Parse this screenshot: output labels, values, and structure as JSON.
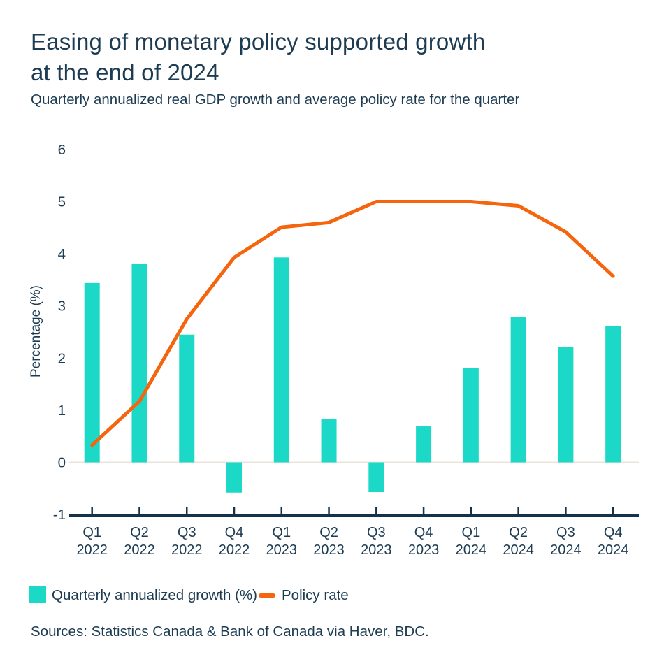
{
  "header": {
    "title": "Easing of monetary policy supported growth\nat the end of 2024",
    "subtitle": "Quarterly annualized real GDP growth and average policy rate for the quarter"
  },
  "chart_data": {
    "type": "bar+line",
    "categories": [
      {
        "quarter": "Q1",
        "year": "2022"
      },
      {
        "quarter": "Q2",
        "year": "2022"
      },
      {
        "quarter": "Q3",
        "year": "2022"
      },
      {
        "quarter": "Q4",
        "year": "2022"
      },
      {
        "quarter": "Q1",
        "year": "2023"
      },
      {
        "quarter": "Q2",
        "year": "2023"
      },
      {
        "quarter": "Q3",
        "year": "2023"
      },
      {
        "quarter": "Q4",
        "year": "2023"
      },
      {
        "quarter": "Q1",
        "year": "2024"
      },
      {
        "quarter": "Q2",
        "year": "2024"
      },
      {
        "quarter": "Q3",
        "year": "2024"
      },
      {
        "quarter": "Q4",
        "year": "2024"
      }
    ],
    "series": [
      {
        "name": "Quarterly annualized growth (%)",
        "type": "bar",
        "color": "#1CD9C7",
        "values": [
          3.44,
          3.81,
          2.45,
          -0.58,
          3.93,
          0.83,
          -0.57,
          0.69,
          1.81,
          2.79,
          2.21,
          2.61
        ]
      },
      {
        "name": "Policy rate",
        "type": "line",
        "color": "#F5650D",
        "values": [
          0.33,
          1.17,
          2.75,
          3.93,
          4.51,
          4.6,
          5.0,
          5.0,
          5.0,
          4.92,
          4.42,
          3.57
        ]
      }
    ],
    "ylabel": "Percentage (%)",
    "yticks": [
      6,
      5,
      4,
      3,
      2,
      1,
      0,
      -1
    ],
    "ylim": [
      -1,
      6
    ],
    "grid": "zero-line-only",
    "legend_position": "bottom-left"
  },
  "legend": {
    "items": [
      {
        "label": "Quarterly annualized growth (%)",
        "swatch": "bar-swatch"
      },
      {
        "label": "Policy rate",
        "swatch": "line-swatch"
      }
    ]
  },
  "source": "Sources: Statistics Canada & Bank of Canada via Haver, BDC.",
  "colors": {
    "bar": "#1CD9C7",
    "line": "#F5650D",
    "text": "#1D3C52",
    "axis_line": "#16324A",
    "zero_line": "#EAE4DC",
    "background": "#FFFFFF"
  }
}
